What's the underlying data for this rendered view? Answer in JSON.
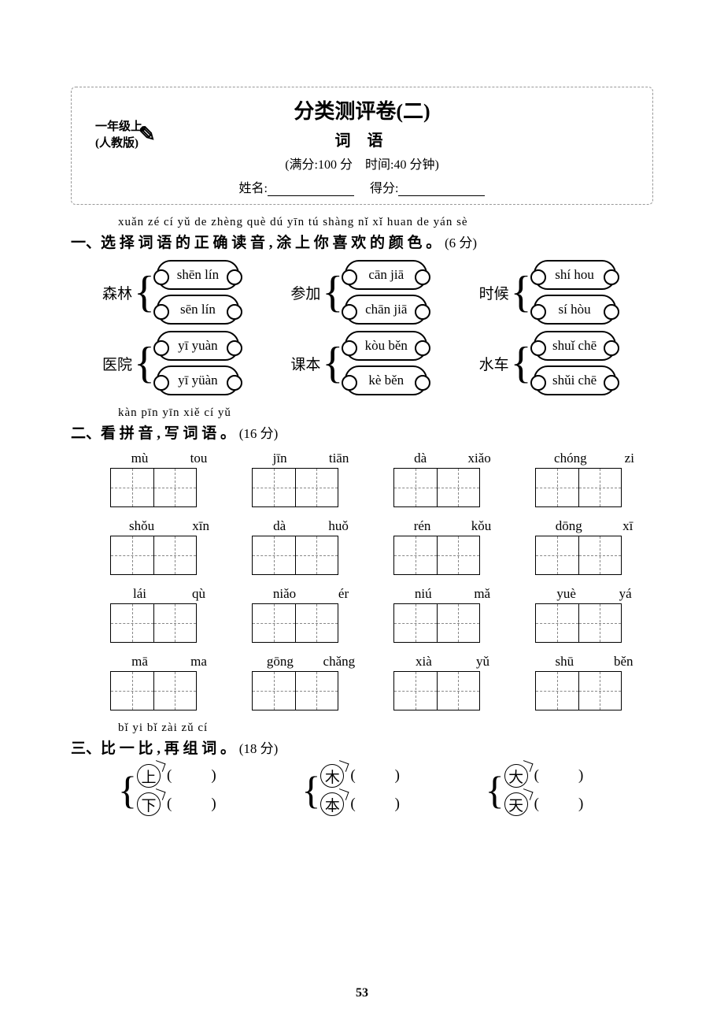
{
  "header": {
    "grade_line1": "一年级上",
    "grade_line2": "(人教版)",
    "title": "分类测评卷(二)",
    "subtitle": "词 语",
    "meta": "(满分:100 分　时间:40 分钟)",
    "name_label": "姓名:",
    "score_label": "得分:"
  },
  "q1": {
    "pinyin": "xuǎn zé cí yǔ de zhèng què dú yīn   tú shàng nǐ xǐ huan de yán sè",
    "heading": "一、选 择 词 语 的 正 确 读 音 , 涂 上 你 喜 欢 的 颜 色 。",
    "points": "(6 分)",
    "items": [
      {
        "label": "森林",
        "opt1": "shēn lín",
        "opt2": "sēn lín"
      },
      {
        "label": "参加",
        "opt1": "cān jiā",
        "opt2": "chān jiā"
      },
      {
        "label": "时候",
        "opt1": "shí hou",
        "opt2": "sí hòu"
      },
      {
        "label": "医院",
        "opt1": "yī yuàn",
        "opt2": "yī yüàn"
      },
      {
        "label": "课本",
        "opt1": "kòu běn",
        "opt2": "kè běn"
      },
      {
        "label": "水车",
        "opt1": "shuǐ chē",
        "opt2": "shǔi chē"
      }
    ]
  },
  "q2": {
    "pinyin": "kàn pīn yīn   xiě cí yǔ",
    "heading": "二、看 拼 音 , 写 词 语 。",
    "points": "(16 分)",
    "items": [
      {
        "p1": "mù",
        "p2": "tou"
      },
      {
        "p1": "jīn",
        "p2": "tiān"
      },
      {
        "p1": "dà",
        "p2": "xiǎo"
      },
      {
        "p1": "chóng",
        "p2": "zi"
      },
      {
        "p1": "shǒu",
        "p2": "xīn"
      },
      {
        "p1": "dà",
        "p2": "huǒ"
      },
      {
        "p1": "rén",
        "p2": "kǒu"
      },
      {
        "p1": "dōng",
        "p2": "xī"
      },
      {
        "p1": "lái",
        "p2": "qù"
      },
      {
        "p1": "niǎo",
        "p2": "ér"
      },
      {
        "p1": "niú",
        "p2": "mǎ"
      },
      {
        "p1": "yuè",
        "p2": "yá"
      },
      {
        "p1": "mā",
        "p2": "ma"
      },
      {
        "p1": "gōng",
        "p2": "chǎng"
      },
      {
        "p1": "xià",
        "p2": "yǔ"
      },
      {
        "p1": "shū",
        "p2": "běn"
      }
    ]
  },
  "q3": {
    "pinyin": "bǐ yi bǐ   zài zǔ cí",
    "heading": "三、比 一 比 , 再 组 词 。",
    "points": "(18 分)",
    "items": [
      {
        "c1": "上",
        "c2": "下"
      },
      {
        "c1": "木",
        "c2": "本"
      },
      {
        "c1": "大",
        "c2": "天"
      }
    ]
  },
  "page_number": "53",
  "style": {
    "background_color": "#ffffff",
    "text_color": "#000000",
    "title_fontsize": 26,
    "heading_fontsize": 19,
    "body_fontsize": 17,
    "pinyin_fontsize": 15,
    "cloud_border": "#000000",
    "dash_color": "#888888"
  }
}
